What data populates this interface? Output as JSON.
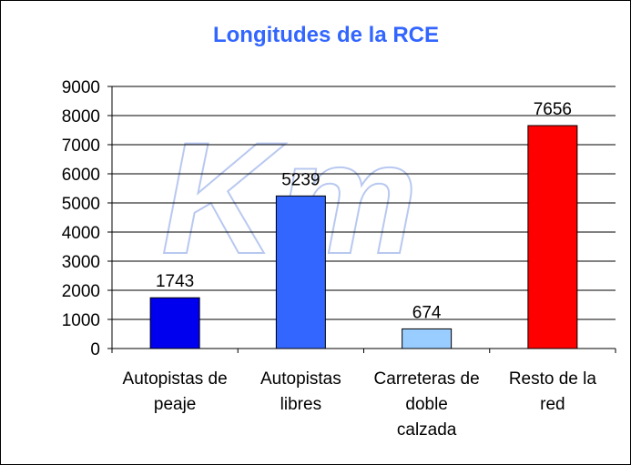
{
  "chart_data": {
    "type": "bar",
    "title": "Longitudes de la RCE",
    "watermark": "Km",
    "categories": [
      [
        "Autopistas de",
        "peaje"
      ],
      [
        "Autopistas",
        "libres"
      ],
      [
        "Carreteras de",
        "doble",
        "calzada"
      ],
      [
        "Resto de la",
        "red"
      ]
    ],
    "values": [
      1743,
      5239,
      674,
      7656
    ],
    "bar_colors": [
      "#0000ee",
      "#3366ff",
      "#99ccff",
      "#ff0000"
    ],
    "ylim": [
      0,
      9000
    ],
    "yticks": [
      0,
      1000,
      2000,
      3000,
      4000,
      5000,
      6000,
      7000,
      8000,
      9000
    ],
    "grid": true,
    "legend": "none",
    "xlabel": "",
    "ylabel": "",
    "colors": {
      "title": "#3366ff",
      "grid": "#000000",
      "watermark_stroke": "#b8c8f0"
    }
  }
}
